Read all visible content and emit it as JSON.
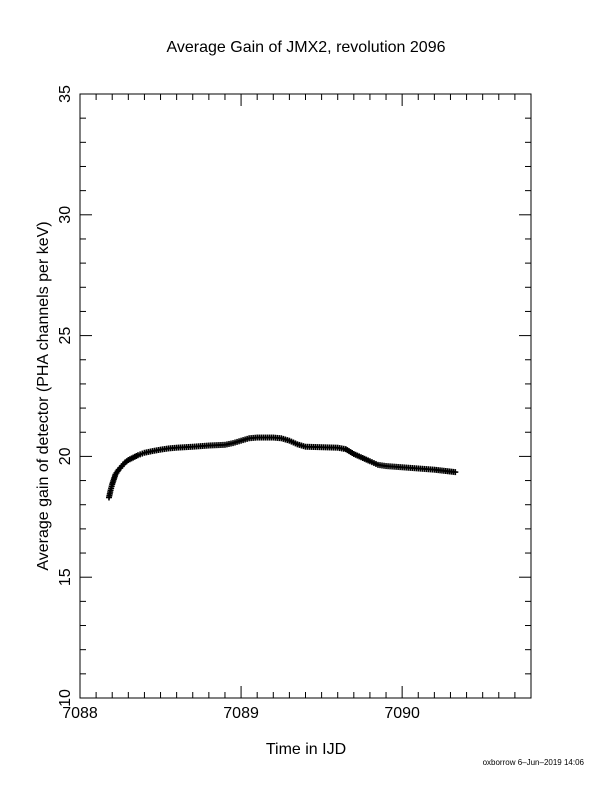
{
  "chart_data": {
    "type": "scatter",
    "title": "Average Gain of JMX2, revolution 2096",
    "xlabel": "Time in IJD",
    "ylabel": "Average gain of detector (PHA channels per keV)",
    "xlim": [
      7088,
      7090.8
    ],
    "ylim": [
      10,
      35
    ],
    "x_ticks": [
      7088,
      7089,
      7090
    ],
    "y_ticks": [
      10,
      15,
      20,
      25,
      30,
      35
    ],
    "marker": "+",
    "marker_color": "#000000",
    "grid": false,
    "legend": "none",
    "x": [
      7088.18,
      7088.19,
      7088.2,
      7088.21,
      7088.22,
      7088.24,
      7088.26,
      7088.28,
      7088.3,
      7088.33,
      7088.36,
      7088.4,
      7088.45,
      7088.5,
      7088.55,
      7088.6,
      7088.7,
      7088.8,
      7088.9,
      7088.95,
      7089.0,
      7089.05,
      7089.1,
      7089.15,
      7089.2,
      7089.25,
      7089.3,
      7089.35,
      7089.4,
      7089.5,
      7089.6,
      7089.65,
      7089.7,
      7089.8,
      7089.85,
      7089.9,
      7090.0,
      7090.1,
      7090.2,
      7090.33
    ],
    "y": [
      18.3,
      18.6,
      18.85,
      19.05,
      19.25,
      19.45,
      19.6,
      19.75,
      19.85,
      19.95,
      20.05,
      20.15,
      20.22,
      20.28,
      20.33,
      20.36,
      20.4,
      20.45,
      20.48,
      20.55,
      20.65,
      20.75,
      20.78,
      20.78,
      20.78,
      20.75,
      20.65,
      20.5,
      20.4,
      20.38,
      20.36,
      20.3,
      20.1,
      19.8,
      19.65,
      19.6,
      19.55,
      19.5,
      19.45,
      19.35
    ]
  },
  "footer": "oxborrow 6–Jun–2019 14:06"
}
